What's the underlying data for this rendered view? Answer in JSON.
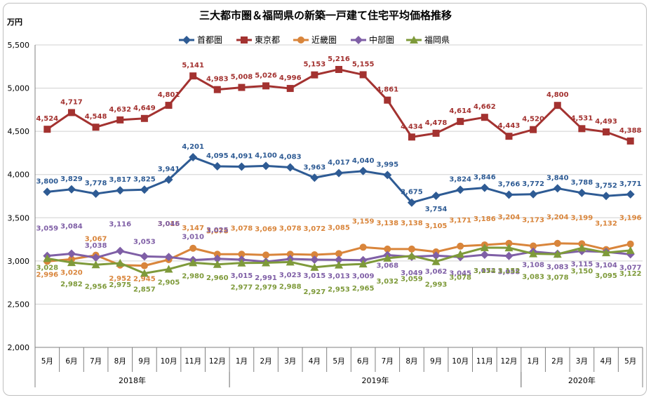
{
  "chart_data": {
    "type": "line",
    "title": "三大都市圏＆福岡県の新築一戸建て住宅平均価格推移",
    "ylabel": "万円",
    "ylim": [
      2000,
      5500
    ],
    "yticks": [
      "2,000",
      "2,500",
      "3,000",
      "3,500",
      "4,000",
      "4,500",
      "5,000",
      "5,500"
    ],
    "ytick_values": [
      2000,
      2500,
      3000,
      3500,
      4000,
      4500,
      5000,
      5500
    ],
    "categories": [
      "5月",
      "6月",
      "7月",
      "8月",
      "9月",
      "10月",
      "11月",
      "12月",
      "1月",
      "2月",
      "3月",
      "4月",
      "5月",
      "6月",
      "7月",
      "8月",
      "9月",
      "10月",
      "11月",
      "12月",
      "1月",
      "2月",
      "3月",
      "4月",
      "5月"
    ],
    "year_groups": [
      {
        "label": "2018年",
        "start": 0,
        "end": 7
      },
      {
        "label": "2019年",
        "start": 8,
        "end": 19
      },
      {
        "label": "2020年",
        "start": 20,
        "end": 24
      }
    ],
    "grid": "horizontal",
    "legend": "top",
    "series": [
      {
        "name": "首都圏",
        "color": "#2E5B94",
        "marker": "diamond",
        "values": [
          3800,
          3829,
          3778,
          3817,
          3825,
          3941,
          4201,
          4095,
          4091,
          4100,
          4083,
          3963,
          4017,
          4040,
          3995,
          3675,
          3754,
          3824,
          3846,
          3766,
          3772,
          3840,
          3788,
          3752,
          3771
        ],
        "labels": [
          "3,800",
          "3,829",
          "3,778",
          "3,817",
          "3,825",
          "3,941",
          "4,201",
          "4,095",
          "4,091",
          "4,100",
          "4,083",
          "3,963",
          "4,017",
          "4,040",
          "3,995",
          "3,675",
          "3,754",
          "3,824",
          "3,846",
          "3,766",
          "3,772",
          "3,840",
          "3,788",
          "3,752",
          "3,771"
        ]
      },
      {
        "name": "東京都",
        "color": "#A33230",
        "marker": "square",
        "values": [
          4524,
          4717,
          4548,
          4632,
          4649,
          4801,
          5141,
          4983,
          5008,
          5026,
          4996,
          5153,
          5216,
          5155,
          4861,
          4434,
          4478,
          4614,
          4662,
          4443,
          4520,
          4800,
          4531,
          4493,
          4388
        ],
        "labels": [
          "4,524",
          "4,717",
          "4,548",
          "4,632",
          "4,649",
          "4,801",
          "5,141",
          "4,983",
          "5,008",
          "5,026",
          "4,996",
          "5,153",
          "5,216",
          "5,155",
          "4,861",
          "4,434",
          "4,478",
          "4,614",
          "4,662",
          "4,443",
          "4,520",
          "4,800",
          "4,531",
          "4,493",
          "4,388"
        ]
      },
      {
        "name": "近畿圏",
        "color": "#D9853B",
        "marker": "circle",
        "values": [
          2996,
          3020,
          3067,
          2952,
          2945,
          3015,
          3147,
          3078,
          3078,
          3069,
          3078,
          3072,
          3085,
          3159,
          3138,
          3138,
          3105,
          3171,
          3186,
          3204,
          3173,
          3204,
          3199,
          3132,
          3196
        ],
        "labels": [
          "2,996",
          "3,020",
          "3,067",
          "2,952",
          "2,945",
          "3,015",
          "3,147",
          "3,078",
          "3,078",
          "3,069",
          "3,078",
          "3,072",
          "3,085",
          "3,159",
          "3,138",
          "3,138",
          "3,105",
          "3,171",
          "3,186",
          "3,204",
          "3,173",
          "3,204",
          "3,199",
          "3,132",
          "3,196"
        ]
      },
      {
        "name": "中部圏",
        "color": "#7F5FA6",
        "marker": "diamond",
        "values": [
          3059,
          3084,
          3038,
          3116,
          3053,
          3046,
          3010,
          3025,
          3015,
          2991,
          3023,
          3015,
          3013,
          3009,
          3068,
          3049,
          3062,
          3045,
          3072,
          3058,
          3108,
          3083,
          3115,
          3104,
          3077
        ],
        "labels": [
          "3,059",
          "3,084",
          "3,038",
          "3,116",
          "3,053",
          "3,046",
          "3,010",
          "3,025",
          "3,015",
          "2,991",
          "3,023",
          "3,015",
          "3,013",
          "3,009",
          "3,068",
          "3,049",
          "3,062",
          "3,045",
          "3,072",
          "3,058",
          "3,108",
          "3,083",
          "3,115",
          "3,104",
          "3,077"
        ]
      },
      {
        "name": "福岡県",
        "color": "#7E9A3A",
        "marker": "triangle",
        "values": [
          3028,
          2982,
          2956,
          2975,
          2857,
          2905,
          2980,
          2960,
          2977,
          2979,
          2988,
          2927,
          2953,
          2965,
          3032,
          3059,
          2993,
          3078,
          3154,
          3152,
          3083,
          3078,
          3150,
          3095,
          3122
        ],
        "labels": [
          "3,028",
          "2,982",
          "2,956",
          "2,975",
          "2,857",
          "2,905",
          "2,980",
          "2,960",
          "2,977",
          "2,979",
          "2,988",
          "2,927",
          "2,953",
          "2,965",
          "3,032",
          "3,059",
          "2,993",
          "3,078",
          "3,154",
          "3,152",
          "3,083",
          "3,078",
          "3,150",
          "3,095",
          "3,122"
        ]
      }
    ]
  }
}
